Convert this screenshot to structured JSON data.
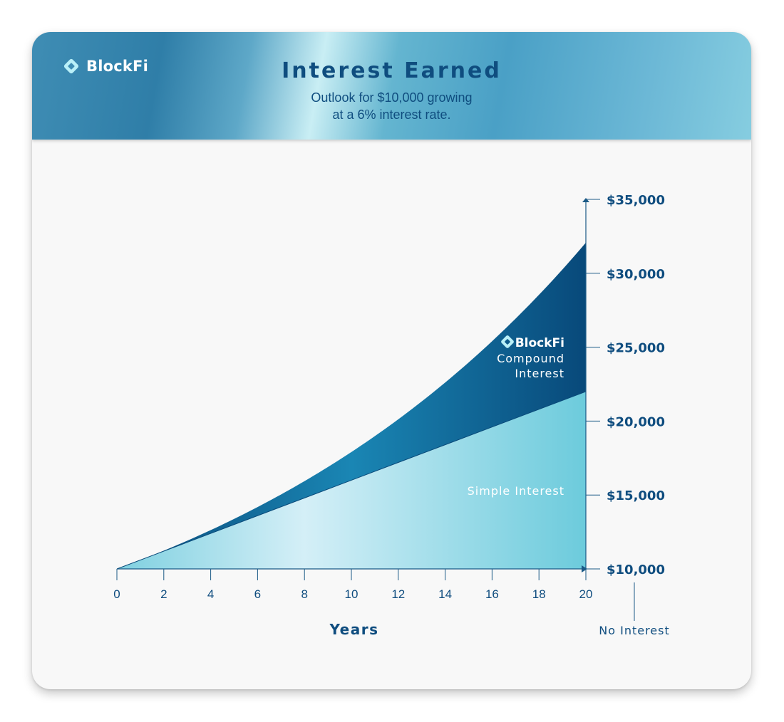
{
  "brand": {
    "name": "BlockFi",
    "icon": "blockfi-diamond-icon"
  },
  "header": {
    "title": "Interest Earned",
    "subtitle_line1": "Outlook for $10,000 growing",
    "subtitle_line2": "at a 6% interest rate."
  },
  "colors": {
    "compound_dark": "#08497a",
    "compound_mid": "#1b86b5",
    "simple_light": "#d2eef6",
    "simple_mid": "#6fcbdd",
    "axis": "#1b5a86",
    "text": "#0f4d7f"
  },
  "chart_data": {
    "type": "area",
    "xlabel": "Years",
    "xlim": [
      0,
      20
    ],
    "x_ticks": [
      0,
      2,
      4,
      6,
      8,
      10,
      12,
      14,
      16,
      18,
      20
    ],
    "ylim": [
      10000,
      35000
    ],
    "y_tick_labels": [
      "$35,000",
      "$30,000",
      "$25,000",
      "$20,000",
      "$15,000",
      "$10,000"
    ],
    "y_tick_values": [
      35000,
      30000,
      25000,
      20000,
      15000,
      10000
    ],
    "baseline_label": "No Interest",
    "principal": 10000,
    "rate": 0.06,
    "series": [
      {
        "name": "Simple Interest",
        "label_text": "Simple Interest",
        "x": [
          0,
          2,
          4,
          6,
          8,
          10,
          12,
          14,
          16,
          18,
          20
        ],
        "values": [
          10000,
          11200,
          12400,
          13600,
          14800,
          16000,
          17200,
          18400,
          19600,
          20800,
          22000
        ]
      },
      {
        "name": "Compound Interest",
        "label_brand": "BlockFi",
        "label_line1": "Compound",
        "label_line2": "Interest",
        "x": [
          0,
          2,
          4,
          6,
          8,
          10,
          12,
          14,
          16,
          18,
          20
        ],
        "values": [
          10000,
          11236,
          12625,
          14185,
          15938,
          17908,
          20122,
          22609,
          25404,
          28543,
          32071
        ]
      }
    ]
  }
}
